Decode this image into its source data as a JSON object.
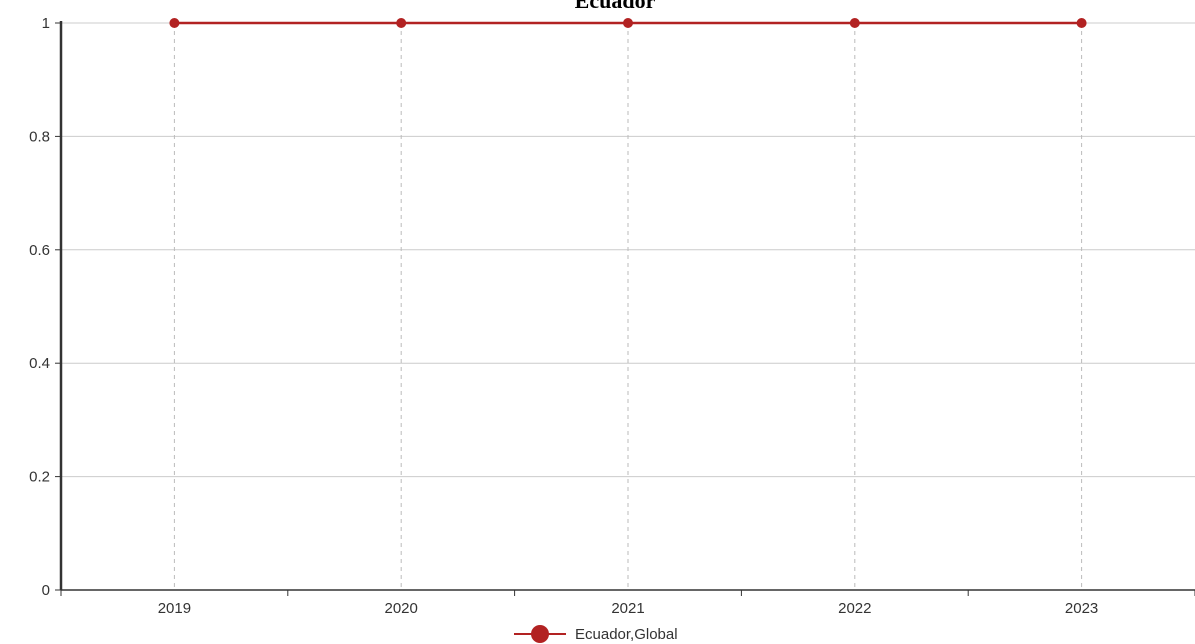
{
  "chart_data": {
    "type": "line",
    "title": "Ecuador",
    "xlabel": "",
    "ylabel": "",
    "categories": [
      "2019",
      "2020",
      "2021",
      "2022",
      "2023"
    ],
    "series": [
      {
        "name": "Ecuador,Global",
        "values": [
          1,
          1,
          1,
          1,
          1
        ],
        "color": "#b22222"
      }
    ],
    "ylim": [
      0,
      1
    ],
    "yticks": [
      "0",
      "0.2",
      "0.4",
      "0.6",
      "0.8",
      "1"
    ],
    "grid": {
      "horizontal": true,
      "vertical_dashed": true
    },
    "legend_position": "bottom-center"
  }
}
